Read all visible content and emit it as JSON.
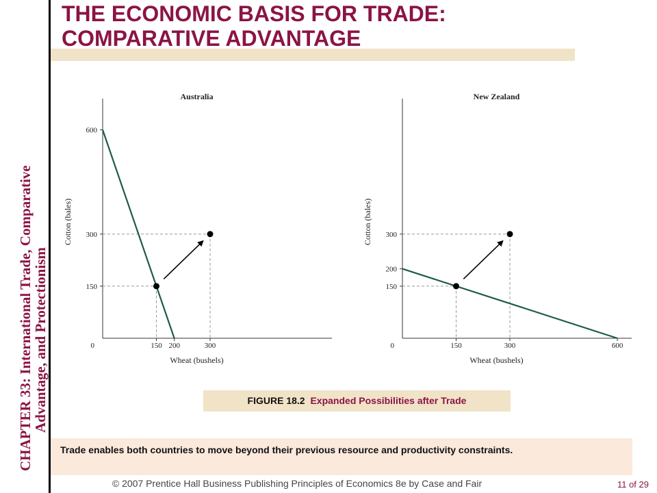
{
  "chapter_label": {
    "line1": "CHAPTER 33:  International Trade, Comparative",
    "line2": "Advantage, and Protectionism"
  },
  "slide_title": {
    "line1": "THE ECONOMIC BASIS FOR TRADE:",
    "line2": "COMPARATIVE ADVANTAGE"
  },
  "chart_data": [
    {
      "type": "line",
      "title": "Australia",
      "xlabel": "Wheat (bushels)",
      "ylabel": "Cotton (bales)",
      "xticks": [
        "0",
        "150",
        "200",
        "300"
      ],
      "yticks": [
        "150",
        "300",
        "600"
      ],
      "series": [
        {
          "x": [
            0,
            200
          ],
          "y": [
            600,
            0
          ]
        }
      ],
      "points": [
        {
          "x": 150,
          "y": 150
        },
        {
          "x": 300,
          "y": 300
        }
      ],
      "arrow": {
        "from": [
          150,
          150
        ],
        "to": [
          300,
          300
        ]
      },
      "xlim": [
        0,
        640
      ],
      "ylim": [
        0,
        690
      ]
    },
    {
      "type": "line",
      "title": "New Zealand",
      "xlabel": "Wheat (bushels)",
      "ylabel": "Cotton (bales)",
      "xticks": [
        "0",
        "150",
        "300",
        "600"
      ],
      "yticks": [
        "150",
        "200",
        "300"
      ],
      "series": [
        {
          "x": [
            0,
            600
          ],
          "y": [
            200,
            0
          ]
        }
      ],
      "points": [
        {
          "x": 150,
          "y": 150
        },
        {
          "x": 300,
          "y": 300
        }
      ],
      "arrow": {
        "from": [
          150,
          150
        ],
        "to": [
          300,
          300
        ]
      },
      "xlim": [
        0,
        640
      ],
      "ylim": [
        0,
        690
      ]
    }
  ],
  "caption": {
    "figure": "FIGURE 18.2",
    "text": "Expanded Possibilities after Trade"
  },
  "note": "Trade enables both countries to move beyond their previous resource and productivity constraints.",
  "footer": "© 2007 Prentice Hall Business Publishing   Principles of Economics 8e by Case and Fair",
  "page": "11 of 29",
  "colors": {
    "title": "#8b1445",
    "chapter": "#8b1445",
    "line": "#1f5a4c",
    "band": "#f1e3c8",
    "note_bg": "#fbe9dc"
  }
}
